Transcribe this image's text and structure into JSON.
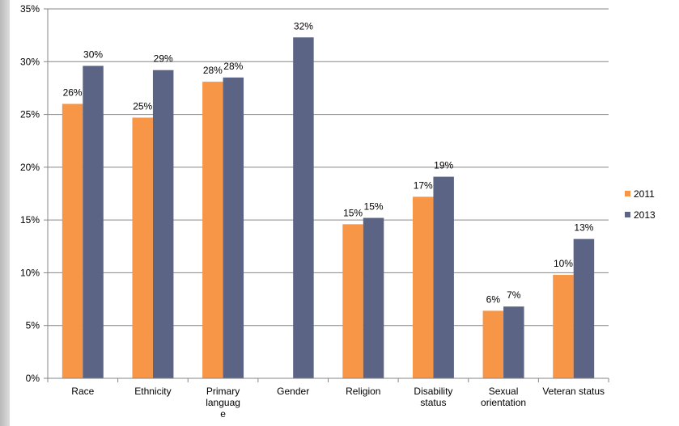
{
  "chart_data": {
    "type": "bar",
    "categories": [
      [
        "Race"
      ],
      [
        "Ethnicity"
      ],
      [
        "Primary",
        "languag",
        "e"
      ],
      [
        "Gender"
      ],
      [
        "Religion"
      ],
      [
        "Disability",
        "status"
      ],
      [
        "Sexual",
        "orientation"
      ],
      [
        "Veteran status"
      ]
    ],
    "series": [
      {
        "name": "2011",
        "color": "#f79646",
        "values": [
          26,
          24.7,
          28.1,
          null,
          14.6,
          17.2,
          6.4,
          9.8
        ],
        "labels": [
          "26%",
          "25%",
          "28%",
          "",
          "15%",
          "17%",
          "6%",
          "10%"
        ]
      },
      {
        "name": "2013",
        "color": "#5b6485",
        "values": [
          29.6,
          29.2,
          28.5,
          32.3,
          15.2,
          19.1,
          6.8,
          13.2
        ],
        "labels": [
          "30%",
          "29%",
          "28%",
          "32%",
          "15%",
          "19%",
          "7%",
          "13%"
        ]
      }
    ],
    "y_ticks": [
      "0%",
      "5%",
      "10%",
      "15%",
      "20%",
      "25%",
      "30%",
      "35%"
    ],
    "ylim": [
      0,
      35
    ],
    "grid": true,
    "legend": "right"
  }
}
